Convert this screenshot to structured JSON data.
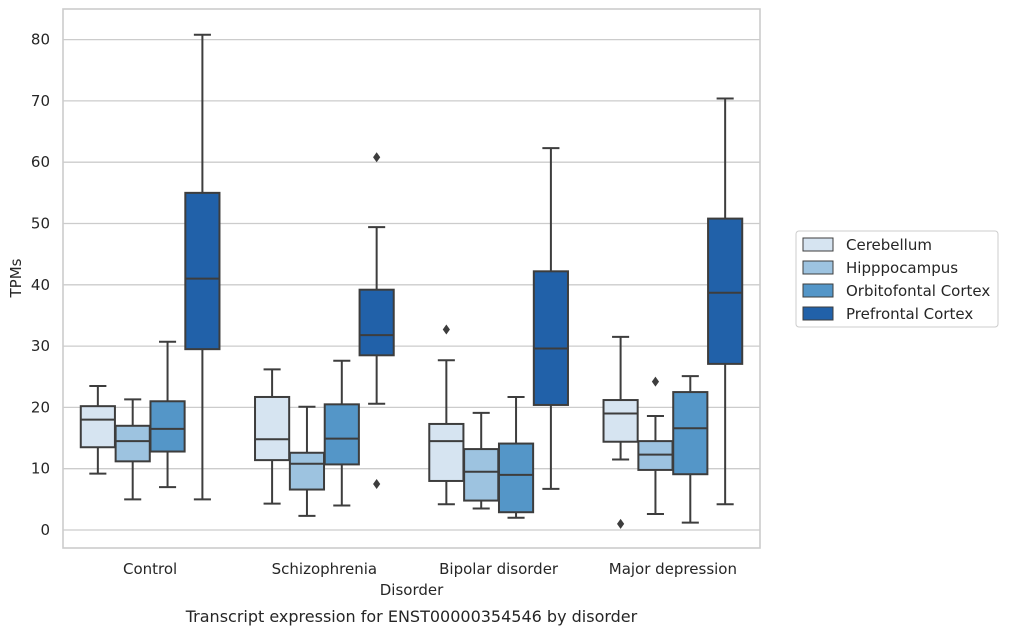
{
  "caption": "Transcript expression for ENST00000354546 by disorder",
  "chart_data": {
    "type": "box",
    "title": "",
    "xlabel": "Disorder",
    "ylabel": "TPMs",
    "ylim": [
      -3,
      85
    ],
    "yticks": [
      0,
      10,
      20,
      30,
      40,
      50,
      60,
      70,
      80
    ],
    "grid": true,
    "legend_position": "right",
    "categories": [
      "Control",
      "Schizophrenia",
      "Bipolar disorder",
      "Major depression"
    ],
    "series": [
      {
        "name": "Cerebellum",
        "color": "#d6e4f1",
        "boxes": [
          {
            "whisker_low": 9.2,
            "q1": 13.5,
            "median": 18.0,
            "q3": 20.2,
            "whisker_high": 23.5,
            "outliers": []
          },
          {
            "whisker_low": 4.3,
            "q1": 11.4,
            "median": 14.8,
            "q3": 21.7,
            "whisker_high": 26.2,
            "outliers": []
          },
          {
            "whisker_low": 4.2,
            "q1": 8.0,
            "median": 14.5,
            "q3": 17.3,
            "whisker_high": 27.7,
            "outliers": [
              32.7
            ]
          },
          {
            "whisker_low": 11.5,
            "q1": 14.4,
            "median": 19.0,
            "q3": 21.2,
            "whisker_high": 31.5,
            "outliers": [
              1.0
            ]
          }
        ]
      },
      {
        "name": "Hipppocampus",
        "color": "#9dc3e0",
        "boxes": [
          {
            "whisker_low": 5.0,
            "q1": 11.2,
            "median": 14.5,
            "q3": 17.0,
            "whisker_high": 21.3,
            "outliers": []
          },
          {
            "whisker_low": 2.3,
            "q1": 6.6,
            "median": 10.8,
            "q3": 12.6,
            "whisker_high": 20.1,
            "outliers": []
          },
          {
            "whisker_low": 3.5,
            "q1": 4.8,
            "median": 9.5,
            "q3": 13.2,
            "whisker_high": 19.1,
            "outliers": []
          },
          {
            "whisker_low": 2.6,
            "q1": 9.8,
            "median": 12.3,
            "q3": 14.5,
            "whisker_high": 18.6,
            "outliers": [
              24.2
            ]
          }
        ]
      },
      {
        "name": "Orbitofontal Cortex",
        "color": "#5496c8",
        "boxes": [
          {
            "whisker_low": 7.0,
            "q1": 12.8,
            "median": 16.5,
            "q3": 21.0,
            "whisker_high": 30.7,
            "outliers": []
          },
          {
            "whisker_low": 4.0,
            "q1": 10.7,
            "median": 14.9,
            "q3": 20.5,
            "whisker_high": 27.6,
            "outliers": []
          },
          {
            "whisker_low": 2.0,
            "q1": 2.9,
            "median": 9.0,
            "q3": 14.1,
            "whisker_high": 21.7,
            "outliers": []
          },
          {
            "whisker_low": 1.2,
            "q1": 9.1,
            "median": 16.6,
            "q3": 22.5,
            "whisker_high": 25.1,
            "outliers": []
          }
        ]
      },
      {
        "name": "Prefrontal Cortex",
        "color": "#2161a9",
        "boxes": [
          {
            "whisker_low": 5.0,
            "q1": 29.5,
            "median": 41.0,
            "q3": 55.0,
            "whisker_high": 80.8,
            "outliers": []
          },
          {
            "whisker_low": 20.6,
            "q1": 28.5,
            "median": 31.8,
            "q3": 39.2,
            "whisker_high": 49.4,
            "outliers": [
              60.8,
              7.5
            ]
          },
          {
            "whisker_low": 6.7,
            "q1": 20.4,
            "median": 29.6,
            "q3": 42.2,
            "whisker_high": 62.3,
            "outliers": []
          },
          {
            "whisker_low": 4.2,
            "q1": 27.1,
            "median": 38.7,
            "q3": 50.8,
            "whisker_high": 70.4,
            "outliers": []
          }
        ]
      }
    ]
  }
}
